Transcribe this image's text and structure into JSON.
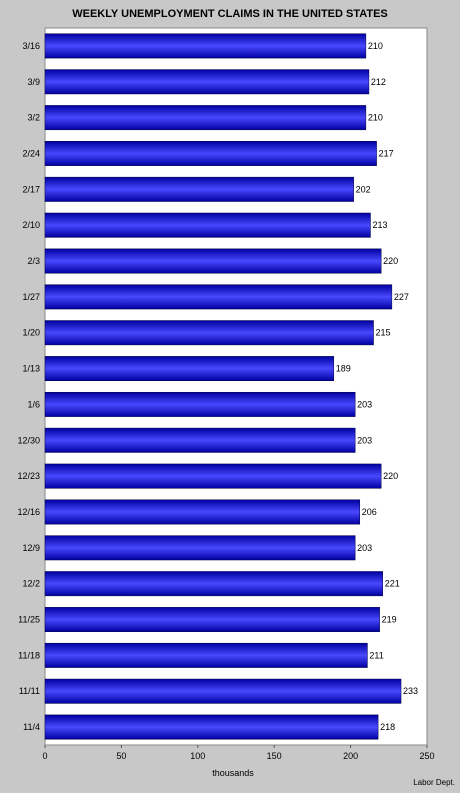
{
  "chart_data": {
    "type": "bar",
    "orientation": "horizontal",
    "title": "WEEKLY UNEMPLOYMENT CLAIMS IN THE UNITED STATES",
    "xlabel": "thousands",
    "source": "Labor Dept.",
    "categories": [
      "3/16",
      "3/9",
      "3/2",
      "2/24",
      "2/17",
      "2/10",
      "2/3",
      "1/27",
      "1/20",
      "1/13",
      "1/6",
      "12/30",
      "12/23",
      "12/16",
      "12/9",
      "12/2",
      "11/25",
      "11/18",
      "11/11",
      "11/4"
    ],
    "values": [
      210,
      212,
      210,
      217,
      202,
      213,
      220,
      227,
      215,
      189,
      203,
      203,
      220,
      206,
      203,
      221,
      219,
      211,
      233,
      218
    ],
    "xlim": [
      0,
      250
    ],
    "xticks": [
      0,
      50,
      100,
      150,
      200,
      250
    ],
    "grid": false,
    "legend": "none",
    "colors": {
      "background": "#c8c8c8",
      "plot_background": "#ffffff",
      "bar_dark": "#0000a0",
      "bar_light": "#4848ff",
      "text": "#000000"
    }
  }
}
